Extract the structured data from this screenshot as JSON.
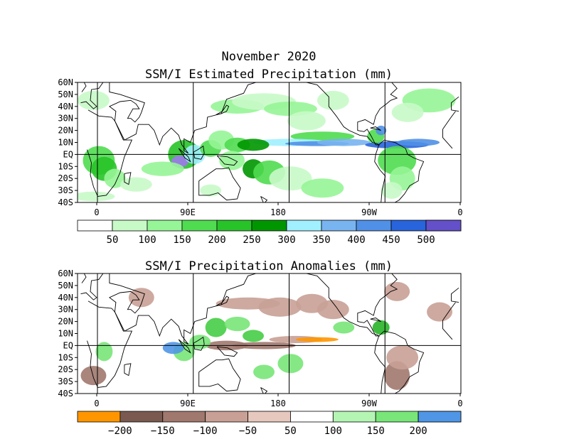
{
  "title": "November 2020",
  "panels": [
    {
      "id": "estimated",
      "title": "SSM/I Estimated Precipitation (mm)",
      "lat_labels": [
        "60N",
        "50N",
        "40N",
        "30N",
        "20N",
        "10N",
        "EQ",
        "10S",
        "20S",
        "30S",
        "40S"
      ],
      "lon_labels": [
        "0",
        "90E",
        "180",
        "90W",
        "0"
      ],
      "colorbar": {
        "colors": [
          "#ffffff",
          "#c8fac8",
          "#96f596",
          "#50dc50",
          "#28c328",
          "#009600",
          "#a0f0ff",
          "#78b4f0",
          "#5090e6",
          "#2864dc",
          "#1446c8",
          "#a078f0",
          "#6450c8"
        ],
        "labels": [
          "50",
          "100",
          "150",
          "200",
          "250",
          "300",
          "350",
          "400",
          "450",
          "500"
        ]
      }
    },
    {
      "id": "anomalies",
      "title": "SSM/I Precipitation Anomalies (mm)",
      "lat_labels": [
        "60N",
        "50N",
        "40N",
        "30N",
        "20N",
        "10N",
        "EQ",
        "10S",
        "20S",
        "30S",
        "40S"
      ],
      "lon_labels": [
        "0",
        "90E",
        "180",
        "90W",
        "0"
      ],
      "colorbar": {
        "colors": [
          "#ff9600",
          "#7a5a50",
          "#a0786e",
          "#c8a096",
          "#e6c8be",
          "#ffffff",
          "#ffffff",
          "#b4f5b4",
          "#78e678",
          "#46cd46",
          "#28b428",
          "#5096e6"
        ],
        "labels": [
          "−200",
          "−150",
          "−100",
          "−50",
          "50",
          "100",
          "150",
          "200"
        ]
      }
    }
  ]
}
